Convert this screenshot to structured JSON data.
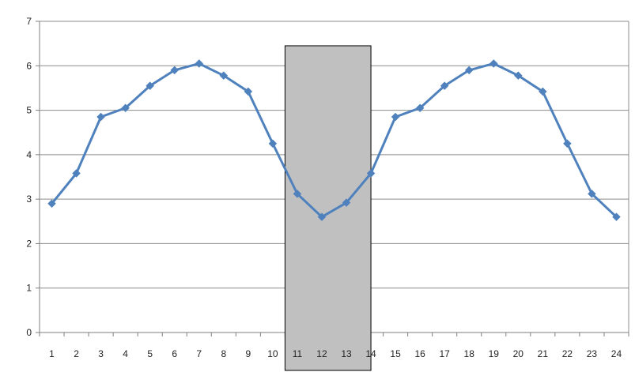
{
  "chart_data": {
    "type": "line",
    "title": "",
    "xlabel": "",
    "ylabel": "",
    "categories": [
      "1",
      "2",
      "3",
      "4",
      "5",
      "6",
      "7",
      "8",
      "9",
      "10",
      "11",
      "12",
      "13",
      "14",
      "15",
      "16",
      "17",
      "18",
      "19",
      "20",
      "21",
      "22",
      "23",
      "24"
    ],
    "series": [
      {
        "name": "",
        "values": [
          2.9,
          3.58,
          4.85,
          5.05,
          5.55,
          5.9,
          6.05,
          5.78,
          5.42,
          4.25,
          3.12,
          2.6,
          2.92,
          3.58,
          4.85,
          5.05,
          5.55,
          5.9,
          6.05,
          5.78,
          5.42,
          4.25,
          3.12,
          2.6
        ],
        "color": "#4f81bd"
      }
    ],
    "ylim": [
      0,
      7
    ],
    "yticks": [
      "0",
      "1",
      "2",
      "3",
      "4",
      "5",
      "6",
      "7"
    ],
    "grid": true,
    "highlight_region": {
      "x_from": 10.5,
      "x_to": 14,
      "fill": "#c0c0c0",
      "stroke": "#000000"
    },
    "marker": "diamond"
  }
}
